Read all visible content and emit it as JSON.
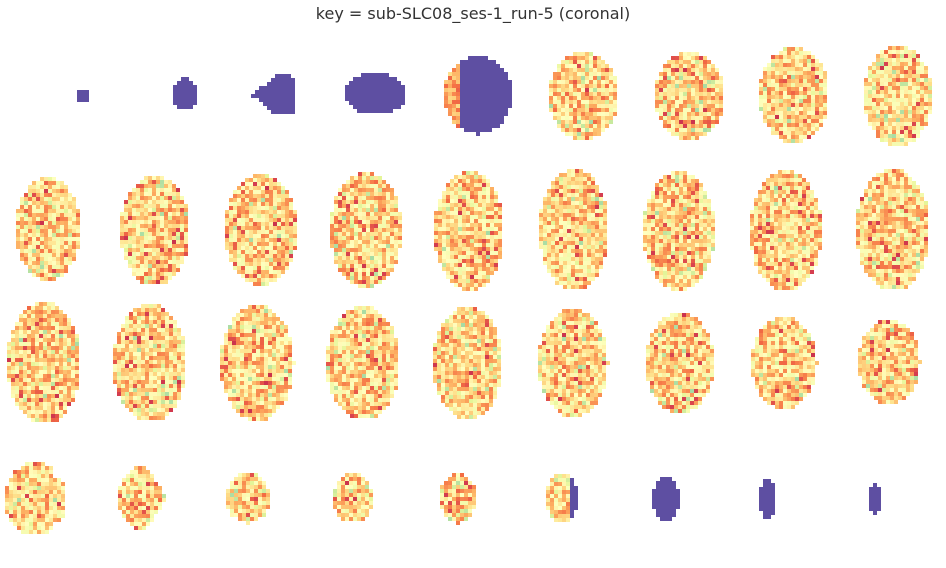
{
  "title": "key = sub-SLC08_ses-1_run-5 (coronal)",
  "view": "coronal",
  "subject_key": "sub-SLC08_ses-1_run-5",
  "colormap": "Spectral",
  "grid": {
    "rows": 4,
    "cols": 9
  },
  "colors": {
    "background": "#ffffff",
    "mask_fill": "#5e4fa2",
    "spectral_stops": [
      "#9e0142",
      "#d53e4f",
      "#f46d43",
      "#fdae61",
      "#fee08b",
      "#ffffbf",
      "#e6f598",
      "#abdda4",
      "#66c2a5",
      "#3288bd",
      "#5e4fa2"
    ]
  },
  "slices": [
    {
      "index": 1,
      "kind": "mask"
    },
    {
      "index": 2,
      "kind": "mask"
    },
    {
      "index": 3,
      "kind": "mask"
    },
    {
      "index": 4,
      "kind": "mask"
    },
    {
      "index": 5,
      "kind": "mixed"
    },
    {
      "index": 6,
      "kind": "intensity"
    },
    {
      "index": 7,
      "kind": "intensity"
    },
    {
      "index": 8,
      "kind": "intensity"
    },
    {
      "index": 9,
      "kind": "intensity"
    },
    {
      "index": 10,
      "kind": "intensity"
    },
    {
      "index": 11,
      "kind": "intensity"
    },
    {
      "index": 12,
      "kind": "intensity"
    },
    {
      "index": 13,
      "kind": "intensity"
    },
    {
      "index": 14,
      "kind": "intensity"
    },
    {
      "index": 15,
      "kind": "intensity"
    },
    {
      "index": 16,
      "kind": "intensity"
    },
    {
      "index": 17,
      "kind": "intensity"
    },
    {
      "index": 18,
      "kind": "intensity"
    },
    {
      "index": 19,
      "kind": "intensity"
    },
    {
      "index": 20,
      "kind": "intensity"
    },
    {
      "index": 21,
      "kind": "intensity"
    },
    {
      "index": 22,
      "kind": "intensity"
    },
    {
      "index": 23,
      "kind": "intensity"
    },
    {
      "index": 24,
      "kind": "intensity"
    },
    {
      "index": 25,
      "kind": "intensity"
    },
    {
      "index": 26,
      "kind": "intensity"
    },
    {
      "index": 27,
      "kind": "intensity"
    },
    {
      "index": 28,
      "kind": "intensity"
    },
    {
      "index": 29,
      "kind": "intensity"
    },
    {
      "index": 30,
      "kind": "intensity"
    },
    {
      "index": 31,
      "kind": "intensity"
    },
    {
      "index": 32,
      "kind": "intensity"
    },
    {
      "index": 33,
      "kind": "mixed"
    },
    {
      "index": 34,
      "kind": "mask"
    },
    {
      "index": 35,
      "kind": "mask"
    },
    {
      "index": 36,
      "kind": "mask"
    }
  ]
}
